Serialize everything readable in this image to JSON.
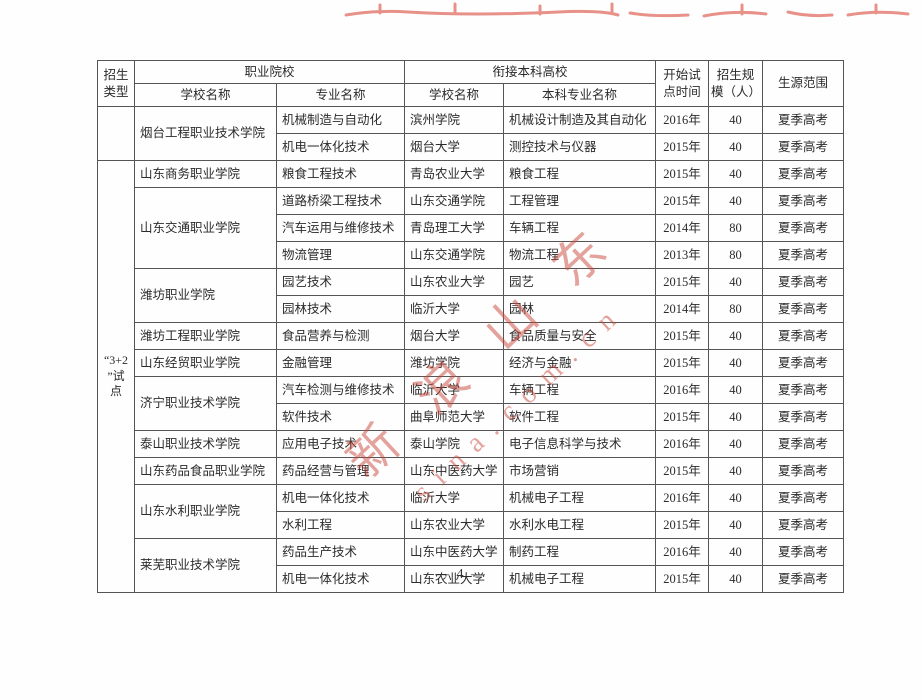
{
  "header": {
    "type": "招生\n类型",
    "vocational_group": "职业院校",
    "undergrad_group": "衔接本科高校",
    "voc_school": "学校名称",
    "voc_major": "专业名称",
    "ug_school": "学校名称",
    "ug_major": "本科专业名称",
    "start_time": "开始试\n点时间",
    "scale": "招生规\n模（人）",
    "source": "生源范围"
  },
  "rows": [
    [
      {
        "t": "",
        "rs": 2
      },
      {
        "t": "烟台工程职业技术学院",
        "rs": 2
      },
      {
        "t": "机械制造与自动化"
      },
      {
        "t": "滨州学院"
      },
      {
        "t": "机械设计制造及其自动化"
      },
      {
        "t": "2016年"
      },
      {
        "t": "40"
      },
      {
        "t": "夏季高考"
      }
    ],
    [
      {
        "t": "机电一体化技术"
      },
      {
        "t": "烟台大学"
      },
      {
        "t": "测控技术与仪器"
      },
      {
        "t": "2015年"
      },
      {
        "t": "40"
      },
      {
        "t": "夏季高考"
      }
    ],
    [
      {
        "t": "“3+2\n”试点",
        "rs": 16
      },
      {
        "t": "山东商务职业学院"
      },
      {
        "t": "粮食工程技术"
      },
      {
        "t": "青岛农业大学"
      },
      {
        "t": "粮食工程"
      },
      {
        "t": "2015年"
      },
      {
        "t": "40"
      },
      {
        "t": "夏季高考"
      }
    ],
    [
      {
        "t": "山东交通职业学院",
        "rs": 3
      },
      {
        "t": "道路桥梁工程技术"
      },
      {
        "t": "山东交通学院"
      },
      {
        "t": "工程管理"
      },
      {
        "t": "2015年"
      },
      {
        "t": "40"
      },
      {
        "t": "夏季高考"
      }
    ],
    [
      {
        "t": "汽车运用与维修技术"
      },
      {
        "t": "青岛理工大学"
      },
      {
        "t": "车辆工程"
      },
      {
        "t": "2014年"
      },
      {
        "t": "80"
      },
      {
        "t": "夏季高考"
      }
    ],
    [
      {
        "t": "物流管理"
      },
      {
        "t": "山东交通学院"
      },
      {
        "t": "物流工程"
      },
      {
        "t": "2013年"
      },
      {
        "t": "80"
      },
      {
        "t": "夏季高考"
      }
    ],
    [
      {
        "t": "潍坊职业学院",
        "rs": 2
      },
      {
        "t": "园艺技术"
      },
      {
        "t": "山东农业大学"
      },
      {
        "t": "园艺"
      },
      {
        "t": "2015年"
      },
      {
        "t": "40"
      },
      {
        "t": "夏季高考"
      }
    ],
    [
      {
        "t": "园林技术"
      },
      {
        "t": "临沂大学"
      },
      {
        "t": "园林"
      },
      {
        "t": "2014年"
      },
      {
        "t": "80"
      },
      {
        "t": "夏季高考"
      }
    ],
    [
      {
        "t": "潍坊工程职业学院"
      },
      {
        "t": "食品营养与检测"
      },
      {
        "t": "烟台大学"
      },
      {
        "t": "食品质量与安全"
      },
      {
        "t": "2015年"
      },
      {
        "t": "40"
      },
      {
        "t": "夏季高考"
      }
    ],
    [
      {
        "t": "山东经贸职业学院"
      },
      {
        "t": "金融管理"
      },
      {
        "t": "潍坊学院"
      },
      {
        "t": "经济与金融"
      },
      {
        "t": "2015年"
      },
      {
        "t": "40"
      },
      {
        "t": "夏季高考"
      }
    ],
    [
      {
        "t": "济宁职业技术学院",
        "rs": 2
      },
      {
        "t": "汽车检测与维修技术"
      },
      {
        "t": "临沂大学"
      },
      {
        "t": "车辆工程"
      },
      {
        "t": "2016年"
      },
      {
        "t": "40"
      },
      {
        "t": "夏季高考"
      }
    ],
    [
      {
        "t": "软件技术"
      },
      {
        "t": "曲阜师范大学"
      },
      {
        "t": "软件工程"
      },
      {
        "t": "2015年"
      },
      {
        "t": "40"
      },
      {
        "t": "夏季高考"
      }
    ],
    [
      {
        "t": "泰山职业技术学院"
      },
      {
        "t": "应用电子技术"
      },
      {
        "t": "泰山学院"
      },
      {
        "t": "电子信息科学与技术"
      },
      {
        "t": "2016年"
      },
      {
        "t": "40"
      },
      {
        "t": "夏季高考"
      }
    ],
    [
      {
        "t": "山东药品食品职业学院"
      },
      {
        "t": "药品经营与管理"
      },
      {
        "t": "山东中医药大学"
      },
      {
        "t": "市场营销"
      },
      {
        "t": "2015年"
      },
      {
        "t": "40"
      },
      {
        "t": "夏季高考"
      }
    ],
    [
      {
        "t": "山东水利职业学院",
        "rs": 2
      },
      {
        "t": "机电一体化技术"
      },
      {
        "t": "临沂大学"
      },
      {
        "t": "机械电子工程"
      },
      {
        "t": "2016年"
      },
      {
        "t": "40"
      },
      {
        "t": "夏季高考"
      }
    ],
    [
      {
        "t": "水利工程"
      },
      {
        "t": "山东农业大学"
      },
      {
        "t": "水利水电工程"
      },
      {
        "t": "2015年"
      },
      {
        "t": "40"
      },
      {
        "t": "夏季高考"
      }
    ],
    [
      {
        "t": "莱芜职业技术学院",
        "rs": 2
      },
      {
        "t": "药品生产技术"
      },
      {
        "t": "山东中医药大学"
      },
      {
        "t": "制药工程"
      },
      {
        "t": "2016年"
      },
      {
        "t": "40"
      },
      {
        "t": "夏季高考"
      }
    ],
    [
      {
        "t": "机电一体化技术"
      },
      {
        "t": "山东农业大学"
      },
      {
        "t": "机械电子工程"
      },
      {
        "t": "2015年"
      },
      {
        "t": "40"
      },
      {
        "t": "夏季高考"
      }
    ]
  ],
  "watermark": {
    "cn": "新浪山东",
    "latin": "sina.com.cn",
    "color": "#c9483d"
  },
  "footer": {
    "page_number": "— 4 —"
  }
}
